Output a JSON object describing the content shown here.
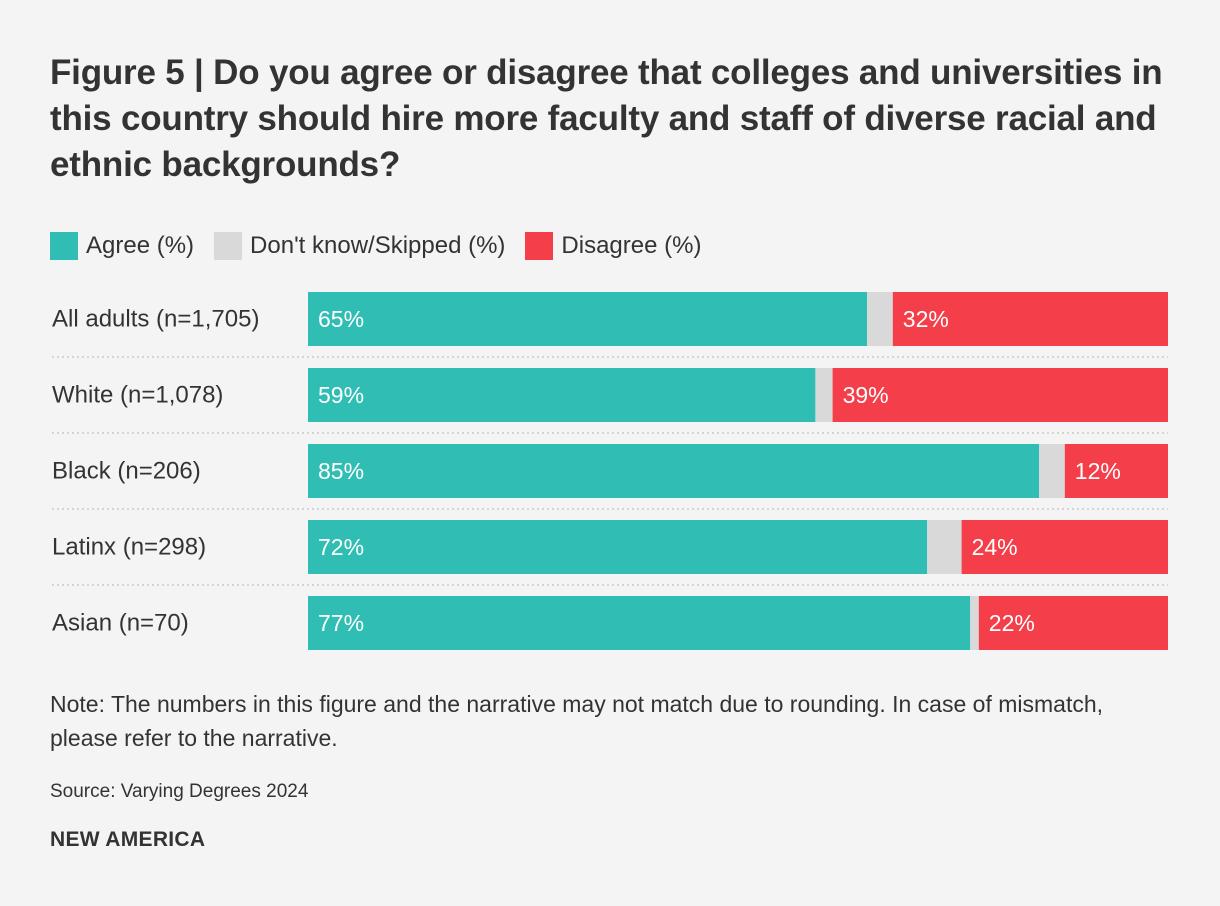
{
  "chart_data": {
    "type": "bar",
    "orientation": "horizontal",
    "stacked": true,
    "title": "Figure 5 | Do you agree or disagree that colleges and universities in this country should hire more faculty and staff of diverse racial and ethnic backgrounds?",
    "categories": [
      "All adults (n=1,705)",
      "White (n=1,078)",
      "Black (n=206)",
      "Latinx (n=298)",
      "Asian (n=70)"
    ],
    "series": [
      {
        "name": "Agree (%)",
        "color": "#30bdb3",
        "values": [
          65,
          59,
          85,
          72,
          77
        ],
        "labels": [
          "65%",
          "59%",
          "85%",
          "72%",
          "77%"
        ]
      },
      {
        "name": "Don't know/Skipped (%)",
        "color": "#d9d9d9",
        "values": [
          3,
          2,
          3,
          4,
          1
        ],
        "labels": [
          "",
          "",
          "",
          "",
          ""
        ]
      },
      {
        "name": "Disagree (%)",
        "color": "#f43f4a",
        "values": [
          32,
          39,
          12,
          24,
          22
        ],
        "labels": [
          "32%",
          "39%",
          "12%",
          "24%",
          "22%"
        ]
      }
    ],
    "xlim": [
      0,
      100
    ],
    "legend_position": "top-left"
  },
  "legend": {
    "agree": "Agree (%)",
    "dont_know": "Don't know/Skipped (%)",
    "disagree": "Disagree (%)"
  },
  "colors": {
    "agree": "#30bdb3",
    "dont_know": "#d9d9d9",
    "disagree": "#f43f4a",
    "text": "#333333",
    "background": "#f4f4f4"
  },
  "note": "Note: The numbers in this figure and the narrative may not match due to rounding. In case of mismatch, please refer to the narrative.",
  "source": "Source: Varying Degrees 2024",
  "brand": "NEW AMERICA"
}
